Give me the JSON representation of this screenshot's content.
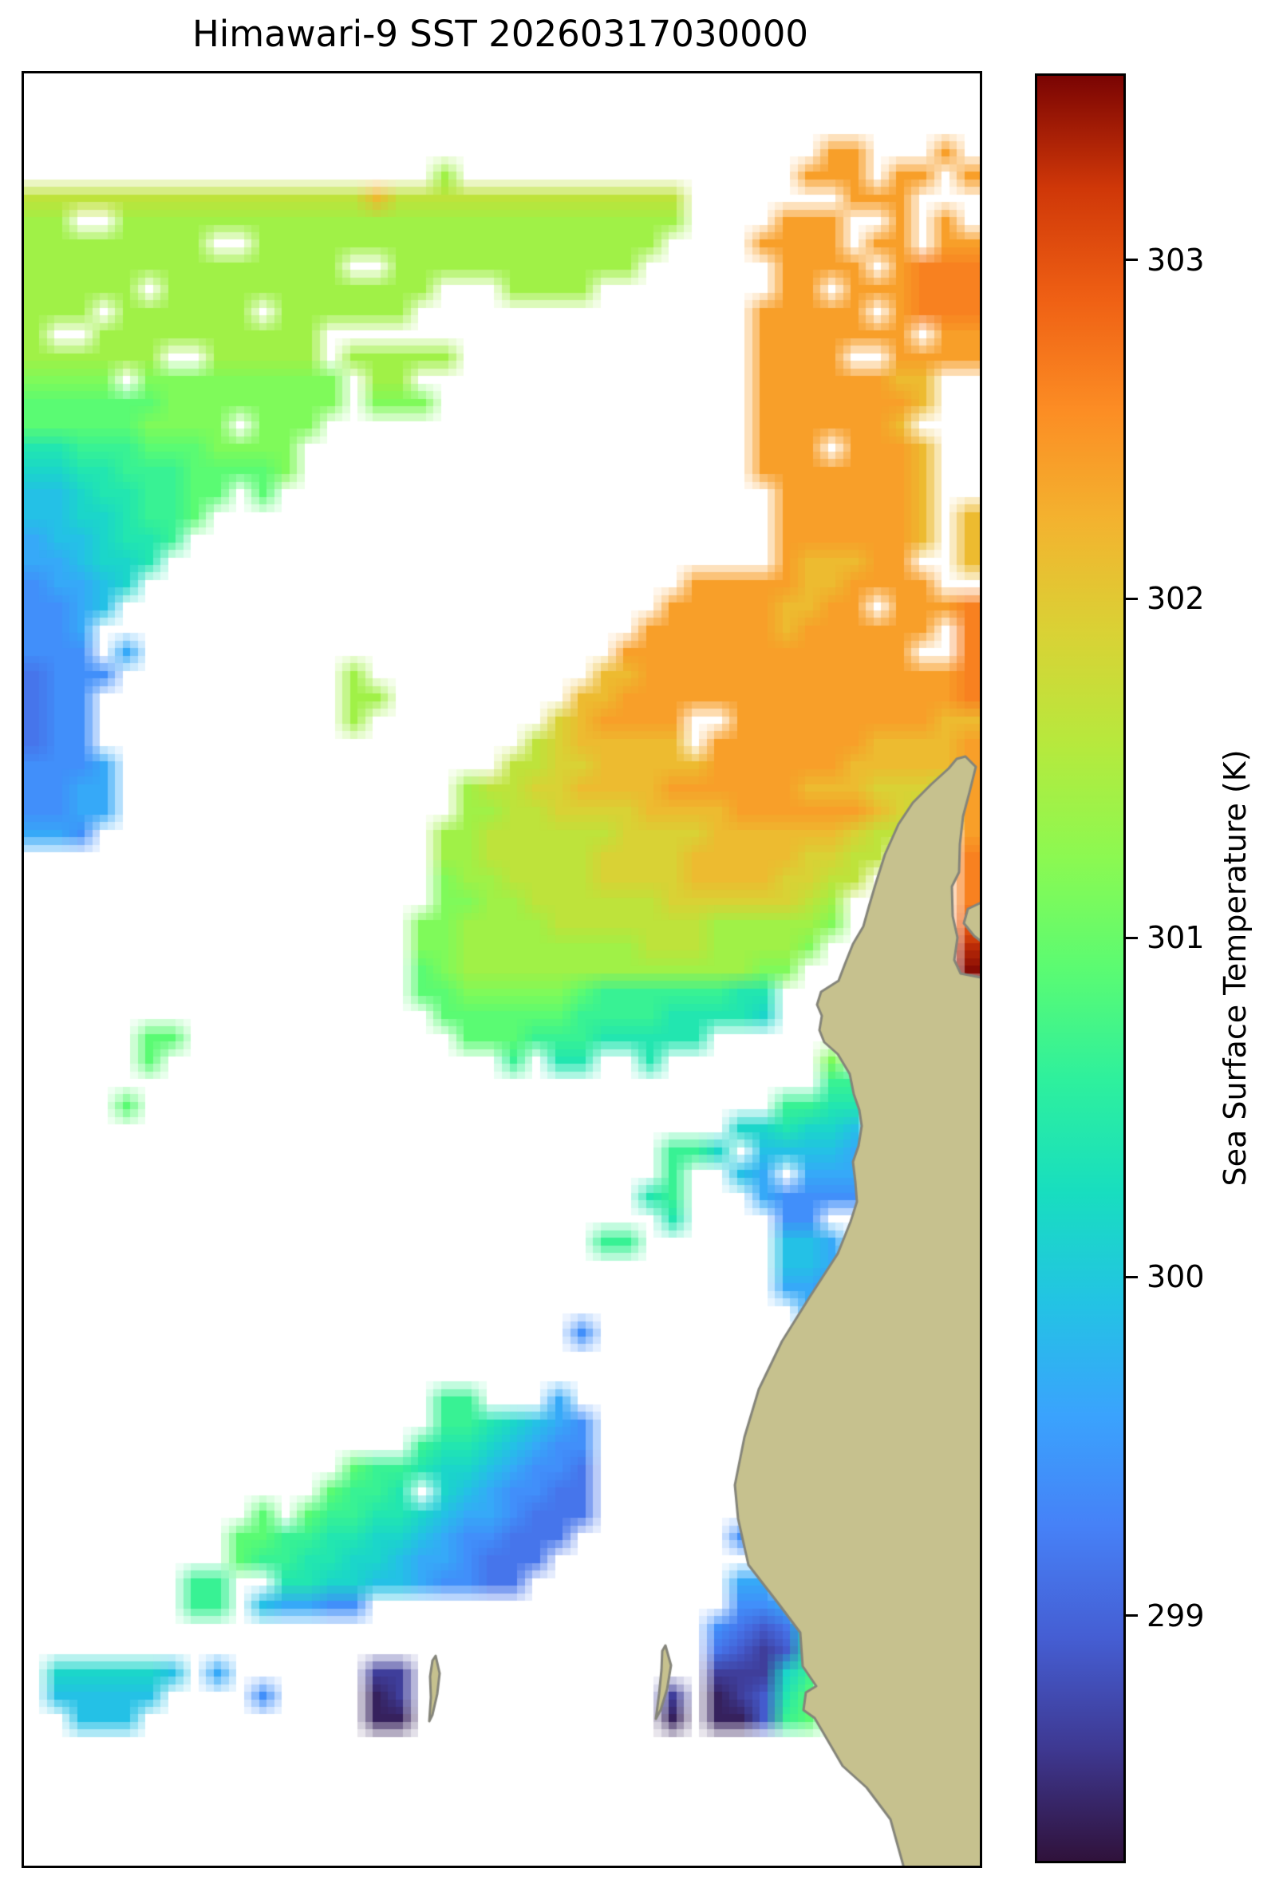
{
  "title": "Himawari-9 SST 20260317030000",
  "colorbar": {
    "label": "Sea Surface Temperature (K)",
    "tick_labels": [
      "299",
      "300",
      "301",
      "302",
      "303"
    ]
  },
  "chart_data": {
    "type": "heatmap",
    "title": "Himawari-9 SST 20260317030000",
    "colorbar_label": "Sea Surface Temperature (K)",
    "tick_values": [
      299,
      300,
      301,
      302,
      303
    ],
    "value_range": [
      298.27,
      303.55
    ],
    "colormap_name": "turbo",
    "legend_position": "right",
    "grid_on": false,
    "no_data_color": "#ffffff",
    "map_rect": [
      27,
      89,
      1198,
      2246
    ],
    "colorbar_rect": [
      1297,
      92,
      114,
      2243
    ],
    "turbo_stops": [
      [
        0.0,
        "#30123b"
      ],
      [
        0.0625,
        "#3e3891"
      ],
      [
        0.125,
        "#455ed3"
      ],
      [
        0.1875,
        "#4681f7"
      ],
      [
        0.25,
        "#3aa3fd"
      ],
      [
        0.3125,
        "#23c3e4"
      ],
      [
        0.375,
        "#18debf"
      ],
      [
        0.4375,
        "#2ef09d"
      ],
      [
        0.5,
        "#5bfb72"
      ],
      [
        0.5625,
        "#8cf951"
      ],
      [
        0.625,
        "#b6e93d"
      ],
      [
        0.6875,
        "#d9d235"
      ],
      [
        0.75,
        "#f3b32f"
      ],
      [
        0.8125,
        "#fc8d24"
      ],
      [
        0.875,
        "#ef6014"
      ],
      [
        0.9375,
        "#cf3708"
      ],
      [
        1.0,
        "#7a0403"
      ]
    ],
    "grid": {
      "cols": 42,
      "rows": 79,
      "char_values_kelvin": {
        "a": 298.4,
        "b": 298.65,
        "c": 298.9,
        "d": 299.15,
        "e": 299.4,
        "f": 299.65,
        "g": 299.9,
        "h": 300.15,
        "i": 300.4,
        "j": 300.65,
        "k": 300.9,
        "l": 301.15,
        "m": 301.4,
        "n": 301.65,
        "o": 301.9,
        "p": 302.15,
        "q": 302.4,
        "r": 302.65,
        "s": 302.9,
        "t": 303.1,
        "u": 303.3,
        "w": 303.5
      },
      "rows_rle": [
        "42.",
        "42.",
        "42.",
        "35.,2q,3.,1q,1.",
        "18.,1m,15.,3q,1.,2q,1.,1q",
        "15n,1p,13n,7.,3q,3.",
        "2m,2.,25m,4.,3q,2.,1q,1.,1q,1.",
        "8m,2.,18m,4.,4q,1.,2q,1.,2q",
        "14m,2.,11m,6.,4q,1.,1q,3r",
        "5m,1.,12m,3.,4m,8.,2q,1.,3q,3r",
        "3m,1.,6m,1.,6m,15.,5q,1.,1q,3r",
        "1m,2.,10m,19.,7q,1.,2q",
        "6m,2.,5m,1.,5m,13.,4q,2.,4q",
        "4l,1.,9l,1.,2m,15.,6q,2p,2.",
        "6k,8l,1.,3l,14.,7q,1p,2.",
        "5k,4l,1.,3l,19.,6q,1p,3.",
        "2i,3j,3k,4l,20.,3q,1.,3q,1p,2.",
        "2h,2i,3j,4k,1l,20.,7q,1p,2.",
        "2g,1h,2i,2j,2k,1.,1k,22.,6q,1p,2.",
        "2g,2h,1i,2j,1k,25.,6q,1p,1.,1p",
        "1f,2g,1h,2i,1j,26.,6q,1p,1.,1p",
        "2f,1g,2h,1i,27.,1q,3p,2q,2.,1p",
        "1e,2f,1g,1h,24.,5q,2p,4q,2.",
        "2e,1f,1g,24.,5q,2p,2q,1.,3q,1r",
        "2e,1f,24.,6q,1p,6q,1.,1r",
        "3e,1.,1f,21.,13q,2.,1r",
        "1d,3e,10.,1m,10.,2p,14q,1r",
        "1d,2e,11.,2m,8.,2p,15q,1r",
        "1d,2e,11.,1m,8.,1o,1p,4q,2.,9q,2p",
        "1d,2e,19.,1n,1o,5p,1.,7q,4p,1q",
        "3e,1f,17.,2n,2o,5p,6q,5p,1q",
        "2e,2f,15.,1m,2n,2o,4p,6q,3p,3o,1n,1q",
        "2e,2f,15.,2m,2n,4o,4p,6q,1p,1o,2n,1q",
        "2f,1e,15.,2m,6n,4o,6p,1o,2n,2.,1q",
        "18.,2m,5n,4o,5p,2o,2n,3.,1r",
        "18.,1l,2m,4n,4o,4p,2o,2n,4.,1r",
        "18.,2l,2m,6n,6o,1n,1m,5.,1r",
        "17.,2l,4m,7n,5m,1l,5.,1s",
        "17.,2l,8m,3n,4m,1l,6.,1u",
        "17.,1k,1l,13m,2l,7.,1w",
        "17.,2k,5l,1k,6j,2i,9.",
        "18.,6k,4j,4i,1h,9.",
        "5.,2k,12.,3k,3j,5i,12.",
        "5.,1k,15.,1j,1.,2i,2.,1i,7.,1l,6.",
        "35.,2j,5.",
        "4.,1k,28.,2j,2i,5.",
        "31.,2h,1i,2h,1g,5.",
        "28.,2j,1h,1.,4g,1f,5.",
        "28.,1j,2.,1g,1f,1.,3f,5.",
        "27.,1i,1j,3.,1f,4e,5.",
        "28.,1i,4.,2e,7.",
        "25.,2j,6.,2g,1f,6.",
        "33.,2g,2f,5.",
        "33.,2f,2e,5.",
        "34.,1f,2e,5.",
        "24.,1e,10.,1e,1d,5.",
        "35.,1d,6.",
        "42.",
        "18.,2j,3.,1f,18.",
        "18.,2j,1i,1h,1g,1f,1e,17.",
        "17.,1j,2i,1h,1g,1f,2e,17.",
        "14.,1k,2j,1i,2h,1g,1f,2e,1d,17.",
        "13.,1k,2j,1i,1.,1h,1g,1f,2e,2d,17.",
        "10.,1k,1.,1k,2j,2i,1h,1g,2f,1e,3d,17.",
        "9.,2k,2j,2i,2h,1g,1f,2e,3d,7.,1e,10.",
        "9.,1k,2j,2i,2h,1g,2f,1e,3d,19.",
        "7.,2j,2.,2i,2h,2g,1f,2e,2d,9.,2f,9.",
        "7.,2j,1.,1g,2f,2e,16.,2e,1f,8.",
        "30.,1e,1d,1c,1d,1h,7.",
        "30.,1d,1c,1b,1c,1i,7.",
        "1.,5h,1g,1.,1f,6.,2b,13.,3b,1h,1j,7.",
        "1.,5g,4.,1e,4.,1a,1b,11.,1b,1.,1a,1b,1c,1i,1k,7.",
        "2.,3g,10.,2a,11.,1a,1.,2a,1c,1j,1k,7.",
        "42.",
        "42.",
        "42.",
        "42.",
        "42.",
        "42."
      ]
    },
    "land": {
      "fill": "#c6c18e",
      "stroke": "#85857a",
      "stroke_width": 3,
      "polygons": [
        [
          [
            1207,
            945
          ],
          [
            1220,
            958
          ],
          [
            1212,
            990
          ],
          [
            1204,
            1020
          ],
          [
            1200,
            1055
          ],
          [
            1199,
            1090
          ],
          [
            1190,
            1108
          ],
          [
            1191,
            1145
          ],
          [
            1197,
            1172
          ],
          [
            1193,
            1200
          ],
          [
            1201,
            1217
          ],
          [
            1227,
            1222
          ],
          [
            1227,
            2338
          ],
          [
            1130,
            2338
          ],
          [
            1113,
            2277
          ],
          [
            1083,
            2237
          ],
          [
            1053,
            2210
          ],
          [
            1028,
            2167
          ],
          [
            1018,
            2150
          ],
          [
            1004,
            2140
          ],
          [
            1007,
            2118
          ],
          [
            1020,
            2110
          ],
          [
            1003,
            2085
          ],
          [
            1000,
            2043
          ],
          [
            973,
            2007
          ],
          [
            935,
            1958
          ],
          [
            922,
            1900
          ],
          [
            918,
            1858
          ],
          [
            930,
            1798
          ],
          [
            948,
            1738
          ],
          [
            977,
            1678
          ],
          [
            1012,
            1622
          ],
          [
            1047,
            1568
          ],
          [
            1063,
            1528
          ],
          [
            1071,
            1503
          ],
          [
            1069,
            1478
          ],
          [
            1066,
            1453
          ],
          [
            1073,
            1433
          ],
          [
            1077,
            1408
          ],
          [
            1074,
            1388
          ],
          [
            1067,
            1368
          ],
          [
            1062,
            1343
          ],
          [
            1047,
            1318
          ],
          [
            1030,
            1303
          ],
          [
            1024,
            1288
          ],
          [
            1027,
            1270
          ],
          [
            1021,
            1256
          ],
          [
            1026,
            1240
          ],
          [
            1048,
            1226
          ],
          [
            1056,
            1205
          ],
          [
            1066,
            1180
          ],
          [
            1079,
            1158
          ],
          [
            1086,
            1133
          ],
          [
            1094,
            1106
          ],
          [
            1106,
            1068
          ],
          [
            1123,
            1030
          ],
          [
            1141,
            1003
          ],
          [
            1164,
            980
          ],
          [
            1186,
            960
          ],
          [
            1196,
            948
          ]
        ],
        [
          [
            1227,
            1128
          ],
          [
            1210,
            1136
          ],
          [
            1205,
            1154
          ],
          [
            1218,
            1170
          ],
          [
            1227,
            1177
          ]
        ],
        [
          [
            543,
            2072
          ],
          [
            548,
            2094
          ],
          [
            545,
            2120
          ],
          [
            539,
            2146
          ],
          [
            535,
            2154
          ],
          [
            537,
            2124
          ],
          [
            536,
            2098
          ],
          [
            539,
            2078
          ]
        ],
        [
          [
            831,
            2059
          ],
          [
            838,
            2084
          ],
          [
            833,
            2114
          ],
          [
            825,
            2140
          ],
          [
            819,
            2151
          ],
          [
            823,
            2120
          ],
          [
            826,
            2090
          ],
          [
            827,
            2066
          ]
        ]
      ]
    }
  }
}
